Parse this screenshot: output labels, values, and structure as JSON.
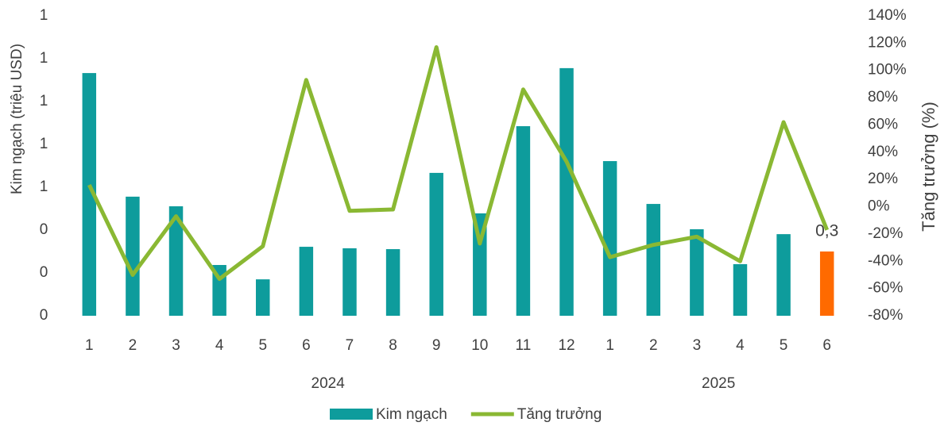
{
  "chart_data": {
    "type": "bar-line",
    "groups": [
      {
        "label": "2024",
        "categories": [
          "1",
          "2",
          "3",
          "4",
          "5",
          "6",
          "7",
          "8",
          "9",
          "10",
          "11",
          "12"
        ]
      },
      {
        "label": "2025",
        "categories": [
          "1",
          "2",
          "3",
          "4",
          "5",
          "6"
        ]
      }
    ],
    "ylabel": "Kim ngạch (triệu USD)",
    "y2label": "Tăng trưởng (%)",
    "ylim": [
      0,
      1.4
    ],
    "yticks": [
      0,
      {
        "value": 0.2,
        "label": "0"
      },
      {
        "value": 0.4,
        "label": "0"
      },
      {
        "value": 0.6,
        "label": "1"
      },
      {
        "value": 0.8,
        "label": "1"
      },
      1,
      {
        "value": 1.2,
        "label": "1"
      },
      {
        "value": 1.4,
        "label": "1"
      }
    ],
    "y2lim": [
      -80,
      140
    ],
    "y2ticks": [
      {
        "value": -80,
        "label": "-80%"
      },
      {
        "value": -60,
        "label": "-60%"
      },
      {
        "value": -40,
        "label": "-40%"
      },
      {
        "value": -20,
        "label": "-20%"
      },
      {
        "value": 0,
        "label": "0%"
      },
      {
        "value": 20,
        "label": "20%"
      },
      {
        "value": 40,
        "label": "40%"
      },
      {
        "value": 60,
        "label": "60%"
      },
      {
        "value": 80,
        "label": "80%"
      },
      {
        "value": 100,
        "label": "100%"
      },
      {
        "value": 120,
        "label": "120%"
      },
      {
        "value": 140,
        "label": "140%"
      }
    ],
    "series": [
      {
        "name": "Kim ngạch",
        "type": "bar",
        "color": "#0e9c9c",
        "highlight_color": "#ff6a00",
        "values": [
          1.133,
          0.556,
          0.511,
          0.237,
          0.17,
          0.322,
          0.315,
          0.311,
          0.667,
          0.478,
          0.885,
          1.156,
          0.722,
          0.522,
          0.404,
          0.241,
          0.381,
          0.3
        ],
        "value_labels": [
          null,
          null,
          null,
          null,
          null,
          null,
          null,
          null,
          null,
          null,
          null,
          null,
          null,
          null,
          null,
          null,
          null,
          "0,3"
        ]
      },
      {
        "name": "Tăng trưởng",
        "type": "line",
        "axis": "y2",
        "color": "#8ab833",
        "values": [
          16,
          -50,
          -7,
          -53,
          -29,
          93,
          -3,
          -2,
          117,
          -27,
          86,
          33,
          -37,
          -28,
          -22,
          -40,
          62,
          -17
        ]
      }
    ]
  }
}
